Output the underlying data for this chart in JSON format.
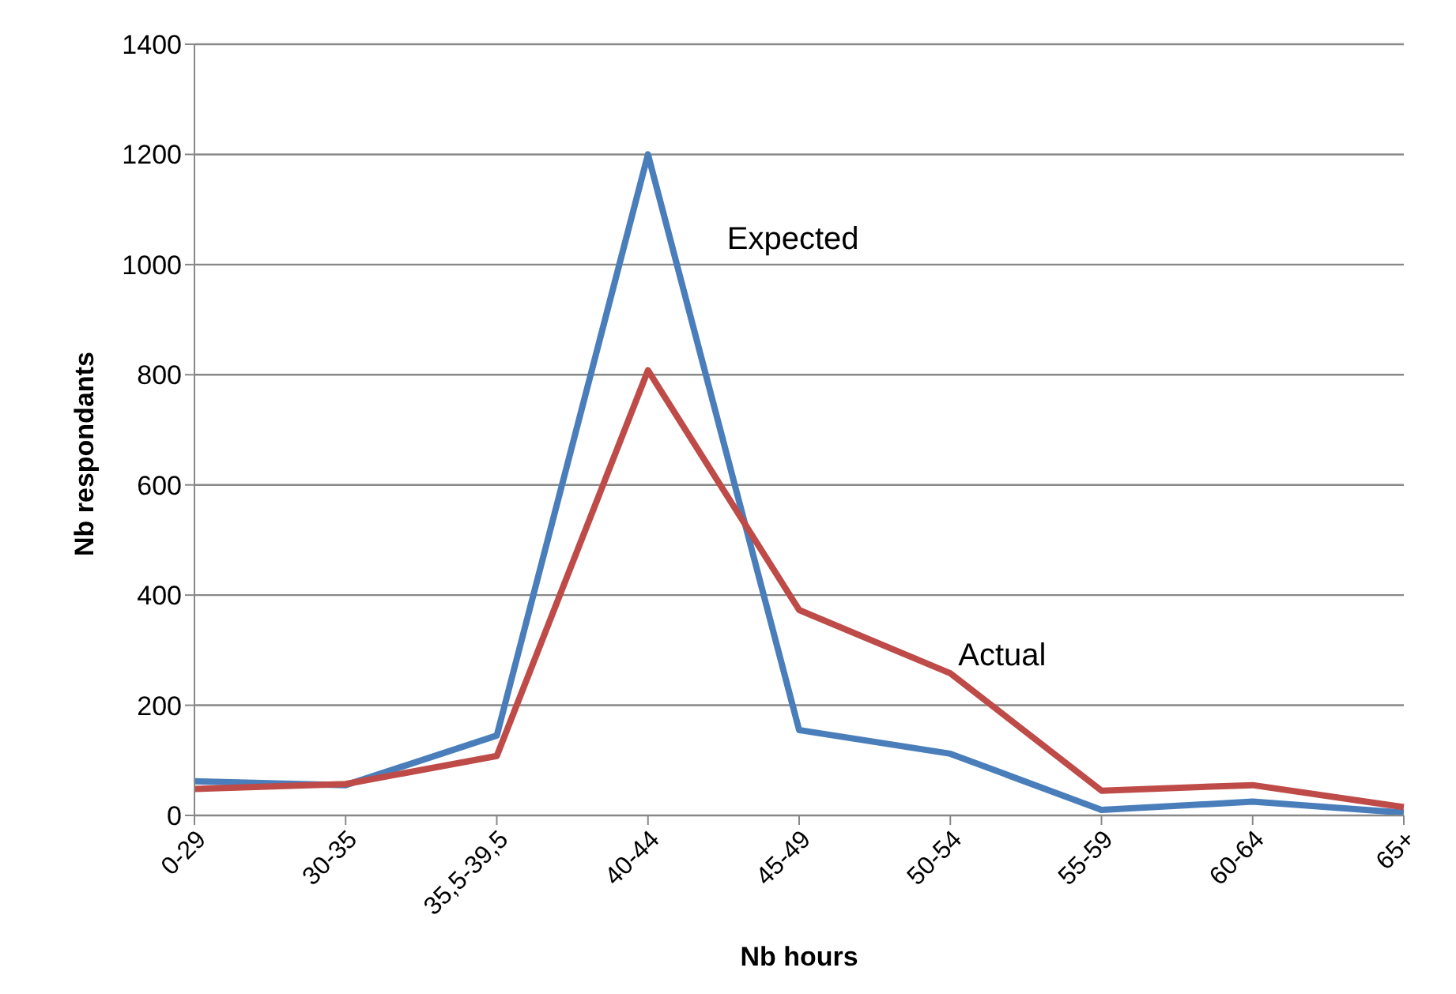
{
  "chart_data": {
    "type": "line",
    "xlabel": "Nb hours",
    "ylabel": "Nb respondants",
    "categories": [
      "0-29",
      "30-35",
      "35,5-39,5",
      "40-44",
      "45-49",
      "50-54",
      "55-59",
      "60-64",
      "65+"
    ],
    "series": [
      {
        "name": "Expected",
        "color": "#4a7ebb",
        "values": [
          62,
          55,
          145,
          1200,
          155,
          112,
          10,
          25,
          5
        ]
      },
      {
        "name": "Actual",
        "color": "#be4b48",
        "values": [
          48,
          57,
          108,
          808,
          373,
          258,
          45,
          55,
          15
        ]
      }
    ],
    "ylim": [
      0,
      1400
    ],
    "yticks": [
      0,
      200,
      400,
      600,
      800,
      1000,
      1200,
      1400
    ],
    "grid": "y",
    "legend": false,
    "marker": "none",
    "line_style": "solid"
  }
}
